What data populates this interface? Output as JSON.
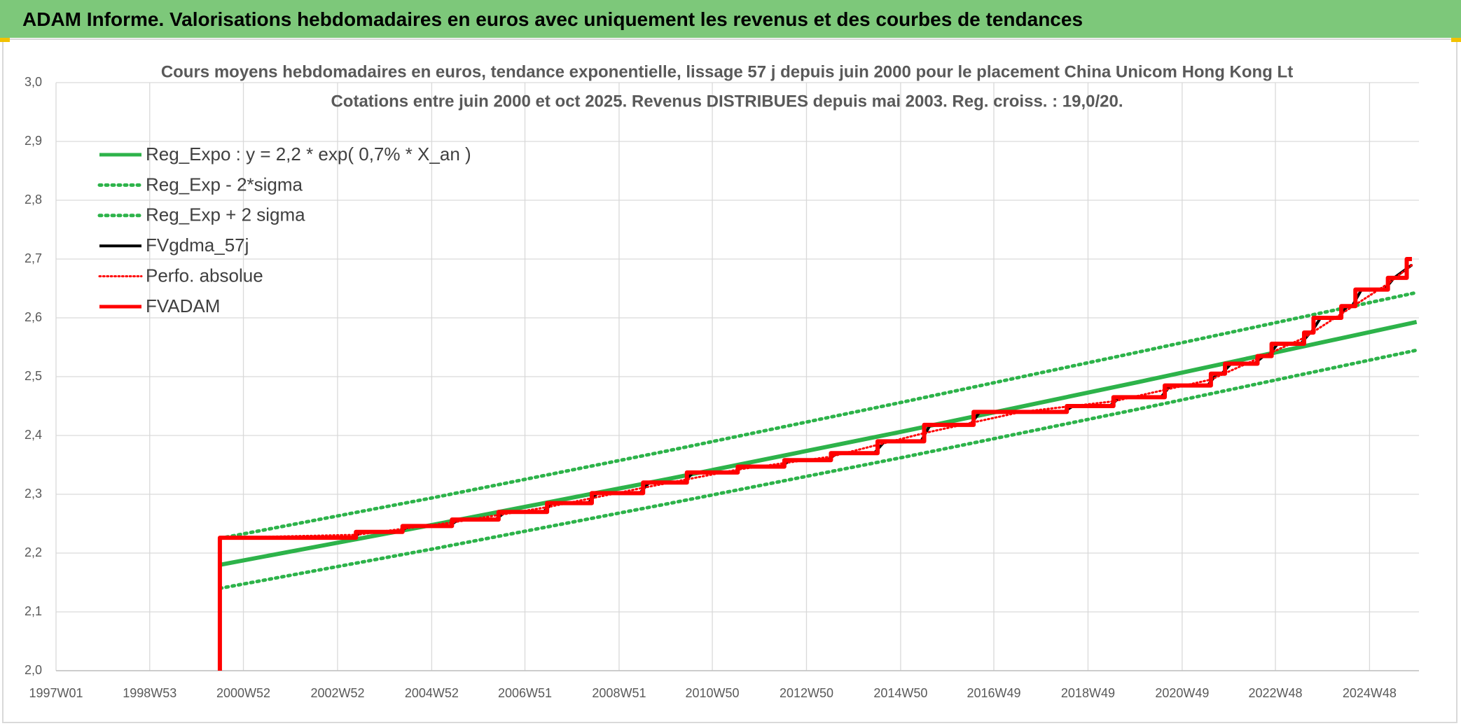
{
  "header": {
    "title": "ADAM Informe. Valorisations hebdomadaires en euros avec uniquement les revenus et des courbes de tendances"
  },
  "chart_data": {
    "type": "line",
    "title": "Cours moyens hebdomadaires en euros, tendance exponentielle, lissage 57 j depuis juin 2000 pour le placement China Unicom Hong Kong Lt",
    "subtitle": "Cotations entre juin 2000 et oct 2025. Revenus DISTRIBUES depuis mai 2003. Reg. croiss. : 19,0/20.",
    "xlim": [
      1997.0,
      2025.95
    ],
    "xticks": [
      {
        "value": 1997.0,
        "label": "1997W01"
      },
      {
        "value": 1998.99,
        "label": "1998W53"
      },
      {
        "value": 2000.98,
        "label": "2000W52"
      },
      {
        "value": 2002.98,
        "label": "2002W52"
      },
      {
        "value": 2004.98,
        "label": "2004W52"
      },
      {
        "value": 2006.96,
        "label": "2006W51"
      },
      {
        "value": 2008.96,
        "label": "2008W51"
      },
      {
        "value": 2010.94,
        "label": "2010W50"
      },
      {
        "value": 2012.94,
        "label": "2012W50"
      },
      {
        "value": 2014.94,
        "label": "2014W50"
      },
      {
        "value": 2016.92,
        "label": "2016W49"
      },
      {
        "value": 2018.92,
        "label": "2018W49"
      },
      {
        "value": 2020.92,
        "label": "2020W49"
      },
      {
        "value": 2022.9,
        "label": "2022W48"
      },
      {
        "value": 2024.9,
        "label": "2024W48"
      }
    ],
    "ylim": [
      2.0,
      3.0
    ],
    "yticks": [
      {
        "value": 2.0,
        "label": "2,0"
      },
      {
        "value": 2.1,
        "label": "2,1"
      },
      {
        "value": 2.2,
        "label": "2,2"
      },
      {
        "value": 2.3,
        "label": "2,3"
      },
      {
        "value": 2.4,
        "label": "2,4"
      },
      {
        "value": 2.5,
        "label": "2,5"
      },
      {
        "value": 2.6,
        "label": "2,6"
      },
      {
        "value": 2.7,
        "label": "2,7"
      },
      {
        "value": 2.8,
        "label": "2,8"
      },
      {
        "value": 2.9,
        "label": "2,9"
      },
      {
        "value": 3.0,
        "label": "3,0"
      }
    ],
    "grid": true,
    "legend": "top-left",
    "series": [
      {
        "name": "Reg_Expo : y = 2,2 * exp( 0,7% *  X_an )",
        "color": "#2db34a",
        "dash": "solid",
        "line_width": 6,
        "x": [
          2000.48,
          2005,
          2010,
          2015,
          2020,
          2025.9
        ],
        "values": [
          2.18,
          2.248,
          2.326,
          2.407,
          2.491,
          2.593
        ]
      },
      {
        "name": "Reg_Exp - 2*sigma",
        "color": "#2db34a",
        "dash": "dotted",
        "line_width": 5,
        "x": [
          2000.48,
          2005,
          2010,
          2015,
          2020,
          2025.9
        ],
        "values": [
          2.14,
          2.207,
          2.284,
          2.363,
          2.445,
          2.545
        ]
      },
      {
        "name": "Reg_Exp + 2 sigma",
        "color": "#2db34a",
        "dash": "dotted",
        "line_width": 5,
        "x": [
          2000.48,
          2005,
          2010,
          2015,
          2020,
          2025.9
        ],
        "values": [
          2.225,
          2.294,
          2.374,
          2.457,
          2.542,
          2.643
        ]
      },
      {
        "name": "FVgdma_57j",
        "color": "#000000",
        "dash": "solid",
        "line_width": 4,
        "x": [
          2000.55,
          2003.3,
          2003.5,
          2004.3,
          2004.5,
          2005.35,
          2005.55,
          2006.33,
          2006.55,
          2007.35,
          2007.55,
          2008.3,
          2008.5,
          2009.4,
          2009.6,
          2010.33,
          2010.53,
          2011.4,
          2011.6,
          2012.4,
          2012.6,
          2013.38,
          2013.6,
          2014.38,
          2014.6,
          2015.37,
          2015.57,
          2016.42,
          2016.62,
          2018.4,
          2018.6,
          2019.38,
          2019.6,
          2020.47,
          2020.67,
          2021.46,
          2021.66,
          2021.76,
          2021.96,
          2022.45,
          2022.65,
          2022.75,
          2022.95,
          2023.44,
          2023.64,
          2023.66,
          2023.86,
          2024.23,
          2024.43,
          2024.53,
          2024.73,
          2025.22,
          2025.42,
          2025.8
        ],
        "values": [
          2.226,
          2.226,
          2.236,
          2.236,
          2.246,
          2.246,
          2.257,
          2.257,
          2.27,
          2.27,
          2.285,
          2.285,
          2.302,
          2.302,
          2.32,
          2.32,
          2.337,
          2.337,
          2.347,
          2.347,
          2.358,
          2.358,
          2.37,
          2.37,
          2.39,
          2.39,
          2.418,
          2.418,
          2.44,
          2.44,
          2.45,
          2.45,
          2.465,
          2.465,
          2.485,
          2.485,
          2.505,
          2.505,
          2.522,
          2.522,
          2.535,
          2.535,
          2.556,
          2.556,
          2.575,
          2.575,
          2.6,
          2.6,
          2.62,
          2.62,
          2.648,
          2.648,
          2.668,
          2.69
        ]
      },
      {
        "name": "Perfo. absolue",
        "color": "#ff0000",
        "dash": "dotted",
        "line_width": 3,
        "x": [
          2000.48,
          2003.37,
          2005.41,
          2007.43,
          2009.47,
          2011.48,
          2013.46,
          2015.44,
          2017.5,
          2019.46,
          2021.53,
          2023.51,
          2025.29,
          2025.8
        ],
        "values": [
          2.226,
          2.231,
          2.252,
          2.278,
          2.311,
          2.342,
          2.364,
          2.404,
          2.44,
          2.458,
          2.495,
          2.566,
          2.658,
          2.69
        ]
      },
      {
        "name": "FVADAM",
        "color": "#ff0000",
        "dash": "solid",
        "line_width": 6,
        "x": [
          2000.48,
          2000.48,
          2003.37,
          2003.37,
          2004.36,
          2004.36,
          2005.41,
          2005.41,
          2006.4,
          2006.4,
          2007.43,
          2007.43,
          2008.38,
          2008.38,
          2009.47,
          2009.47,
          2010.4,
          2010.4,
          2011.48,
          2011.48,
          2012.47,
          2012.47,
          2013.46,
          2013.46,
          2014.45,
          2014.45,
          2015.44,
          2015.44,
          2016.49,
          2016.49,
          2018.47,
          2018.47,
          2019.46,
          2019.46,
          2020.55,
          2020.55,
          2021.53,
          2021.53,
          2021.83,
          2021.83,
          2022.52,
          2022.52,
          2022.82,
          2022.82,
          2023.51,
          2023.51,
          2023.71,
          2023.71,
          2024.3,
          2024.3,
          2024.6,
          2024.6,
          2025.29,
          2025.29,
          2025.69,
          2025.69,
          2025.8
        ],
        "values": [
          2.0,
          2.226,
          2.226,
          2.236,
          2.236,
          2.246,
          2.246,
          2.257,
          2.257,
          2.27,
          2.27,
          2.285,
          2.285,
          2.302,
          2.302,
          2.32,
          2.32,
          2.337,
          2.337,
          2.347,
          2.347,
          2.358,
          2.358,
          2.37,
          2.37,
          2.39,
          2.39,
          2.418,
          2.418,
          2.44,
          2.44,
          2.45,
          2.45,
          2.465,
          2.465,
          2.485,
          2.485,
          2.505,
          2.505,
          2.522,
          2.522,
          2.535,
          2.535,
          2.556,
          2.556,
          2.575,
          2.575,
          2.6,
          2.6,
          2.62,
          2.62,
          2.648,
          2.648,
          2.668,
          2.668,
          2.7,
          2.7
        ]
      }
    ]
  }
}
